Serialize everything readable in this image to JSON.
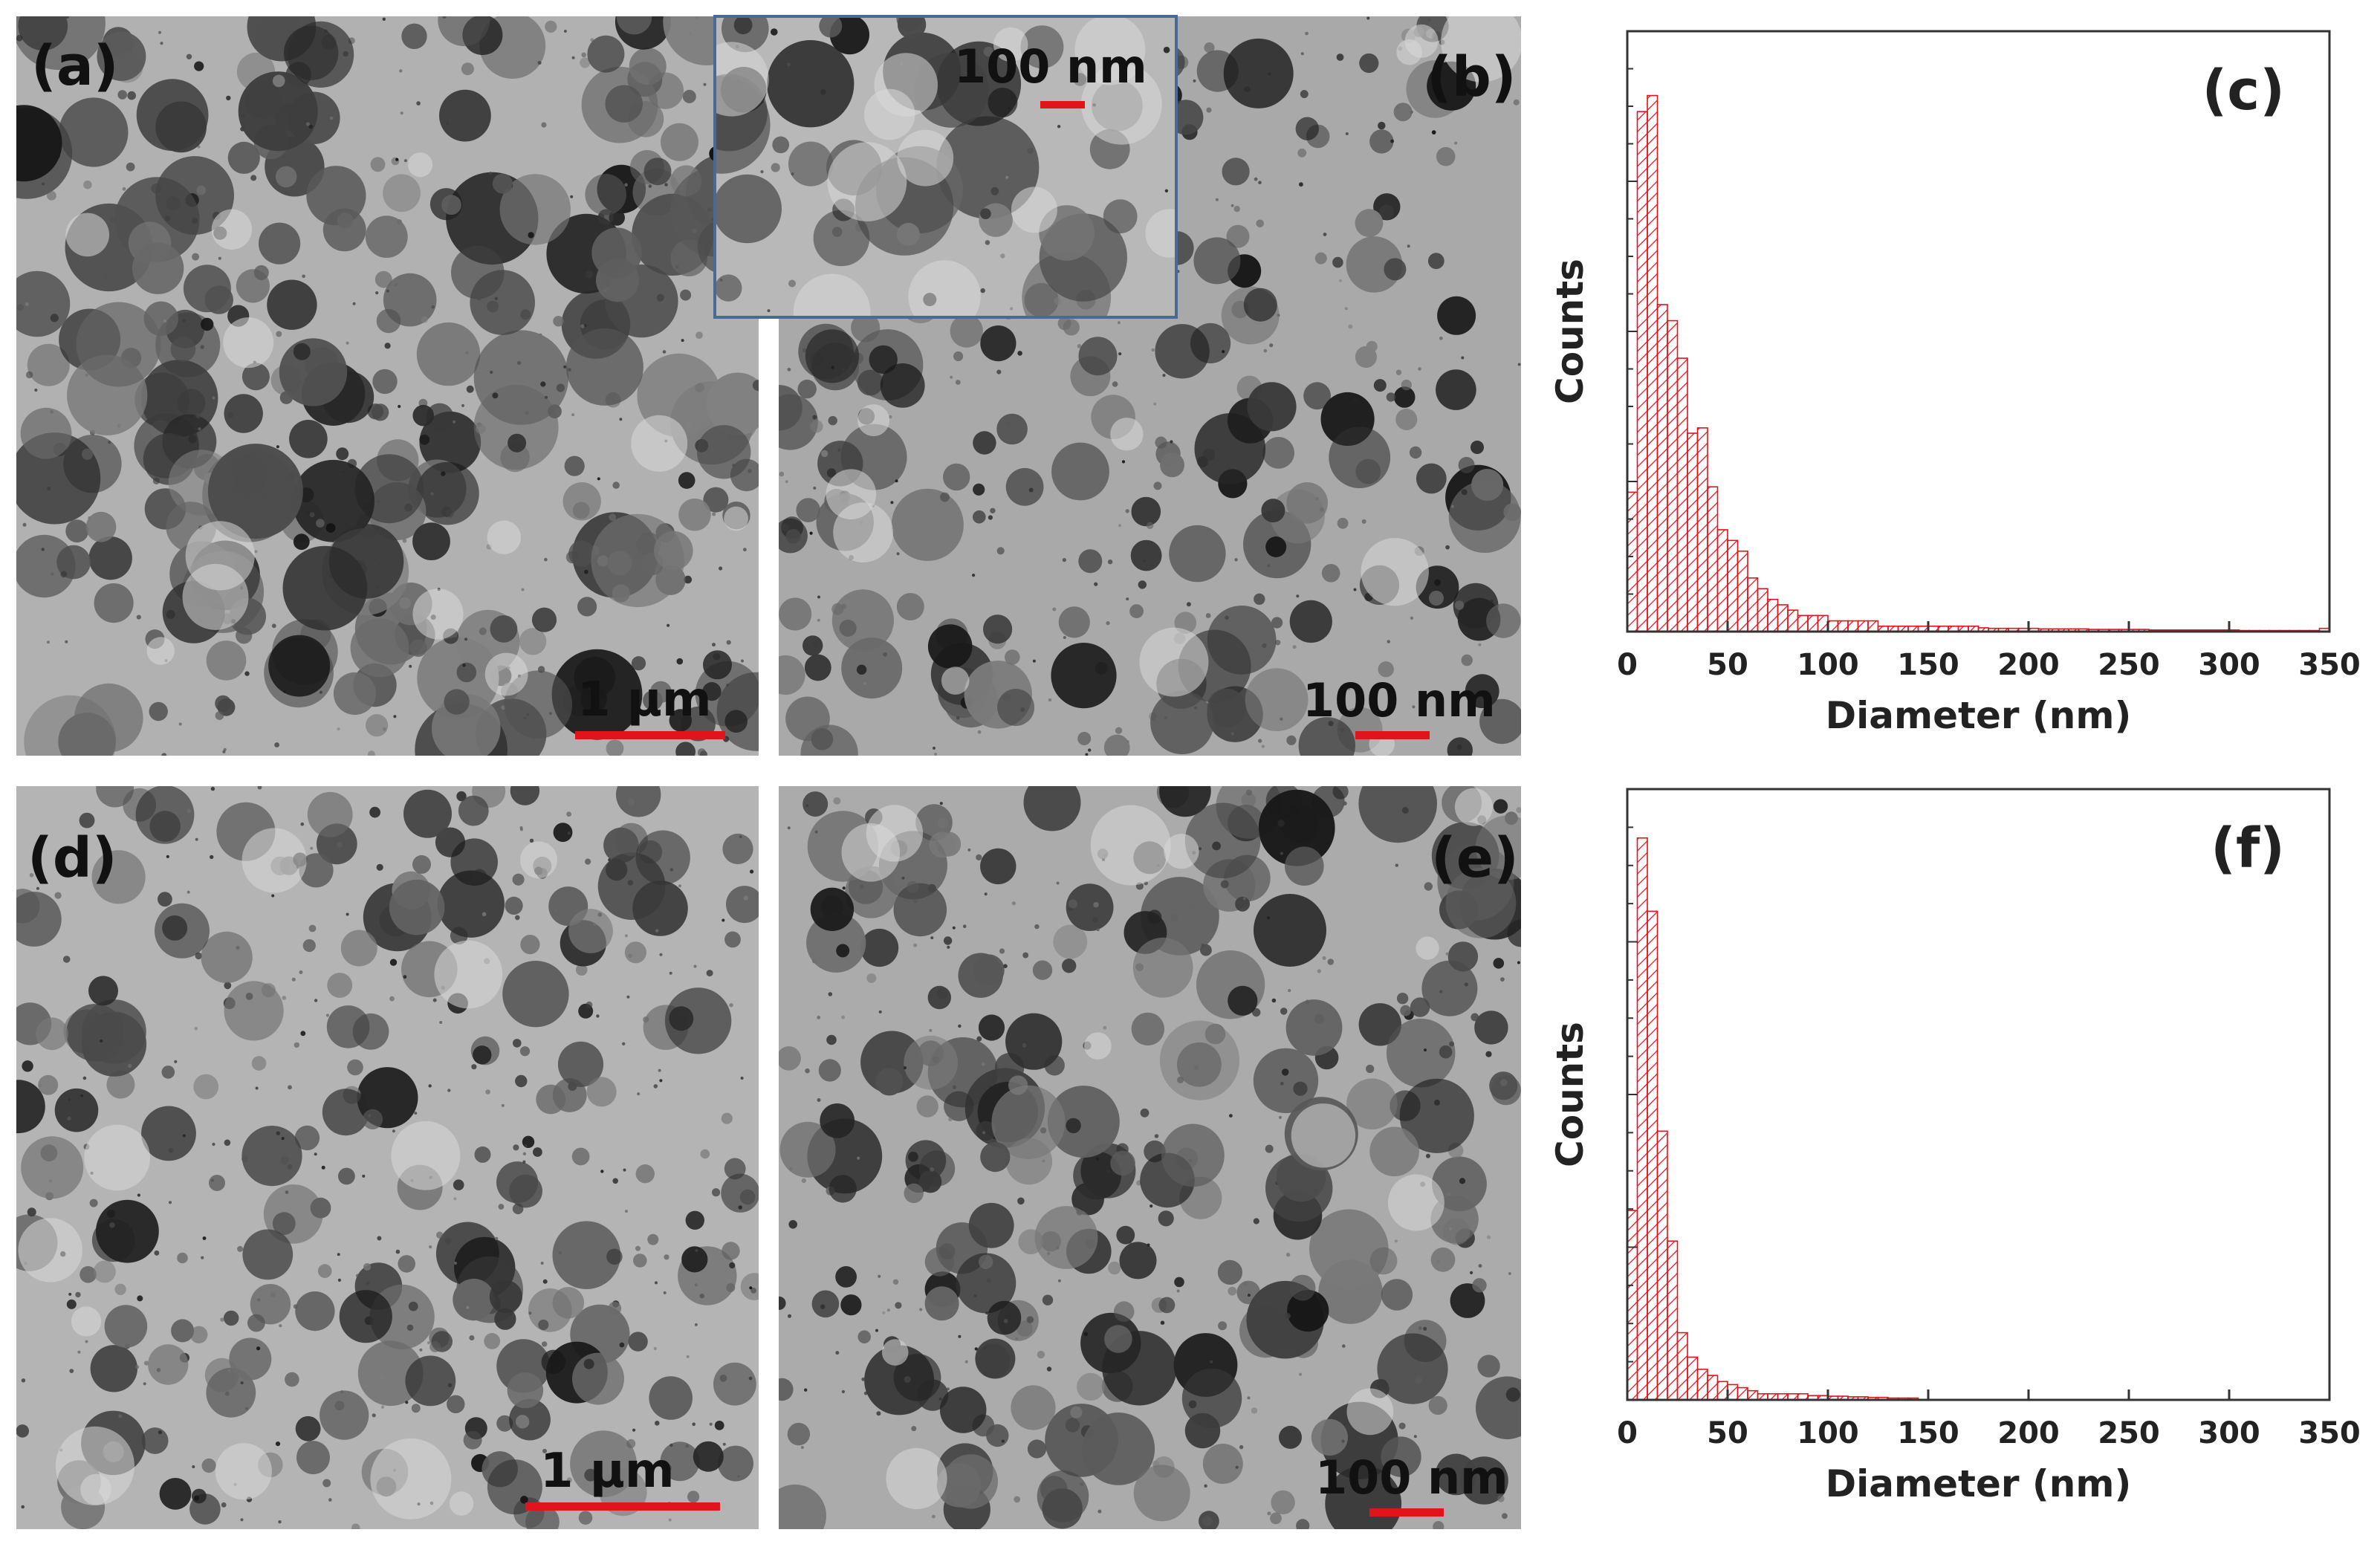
{
  "panels": {
    "a": {
      "label": "(a)",
      "scale_text": "1 μm"
    },
    "b": {
      "label": "(b)",
      "scale_text": "100 nm",
      "inset_scale_text": "100 nm"
    },
    "c": {
      "label": "(c)"
    },
    "d": {
      "label": "(d)",
      "scale_text": "1 μm"
    },
    "e": {
      "label": "(e)",
      "scale_text": "100 nm"
    },
    "f": {
      "label": "(f)"
    }
  },
  "colors": {
    "bars": "#e0141b",
    "scale_bar": "#e0141b",
    "inset_border": "#4a6a96"
  },
  "chart_data": [
    {
      "type": "bar",
      "panel": "(c)",
      "xlabel": "Diameter (nm)",
      "ylabel": "Counts",
      "xlim": [
        0,
        350
      ],
      "xticks": [
        0,
        50,
        100,
        150,
        200,
        250,
        300,
        350
      ],
      "bin_width": 5,
      "bar_style": "red hatched outline",
      "bin_starts": [
        0,
        5,
        10,
        15,
        20,
        25,
        30,
        35,
        40,
        45,
        50,
        55,
        60,
        65,
        70,
        75,
        80,
        85,
        90,
        95,
        100,
        105,
        110,
        115,
        120,
        125,
        130,
        135,
        140,
        145,
        150,
        155,
        160,
        165,
        170,
        175,
        180,
        185,
        190,
        195,
        200,
        205,
        210,
        215,
        220,
        225,
        230,
        235,
        240,
        245,
        250,
        255,
        260,
        265,
        270,
        275,
        280,
        285,
        290,
        295,
        300,
        305,
        310,
        315,
        320,
        325,
        330,
        335,
        340,
        345
      ],
      "values": [
        26,
        97,
        100,
        61,
        58,
        51,
        37,
        38,
        27,
        19,
        17,
        15,
        10,
        8,
        6,
        5,
        4,
        3,
        3,
        3,
        2,
        2,
        2,
        2,
        2,
        1,
        1,
        1,
        1,
        1,
        1,
        1,
        1,
        1,
        1,
        0.7,
        0.6,
        0.6,
        0.6,
        0.6,
        0.6,
        0.5,
        0.5,
        0.5,
        0.5,
        0.5,
        0.4,
        0.4,
        0.4,
        0.4,
        0.4,
        0.4,
        0.3,
        0.3,
        0.3,
        0.3,
        0.3,
        0.3,
        0.3,
        0.3,
        0.3,
        0.2,
        0.2,
        0.2,
        0.2,
        0.2,
        0.2,
        0.2,
        0.2,
        0.6
      ],
      "ylim": [
        0,
        112
      ],
      "grid": false
    },
    {
      "type": "bar",
      "panel": "(f)",
      "xlabel": "Diameter (nm)",
      "ylabel": "Counts",
      "xlim": [
        0,
        350
      ],
      "xticks": [
        0,
        50,
        100,
        150,
        200,
        250,
        300,
        350
      ],
      "bin_width": 5,
      "bar_style": "red hatched outline",
      "bin_starts": [
        0,
        5,
        10,
        15,
        20,
        25,
        30,
        35,
        40,
        45,
        50,
        55,
        60,
        65,
        70,
        75,
        80,
        85,
        90,
        95,
        100,
        105,
        110,
        115,
        120,
        125,
        130,
        135,
        140
      ],
      "values": [
        31,
        92,
        80,
        44,
        26,
        11,
        7,
        5,
        4,
        3,
        2.5,
        2,
        1.5,
        1,
        1,
        1,
        1,
        1,
        0.7,
        0.7,
        0.6,
        0.6,
        0.5,
        0.5,
        0.4,
        0.4,
        0.3,
        0.3,
        0.3
      ],
      "ylim": [
        0,
        100
      ],
      "grid": false
    }
  ]
}
